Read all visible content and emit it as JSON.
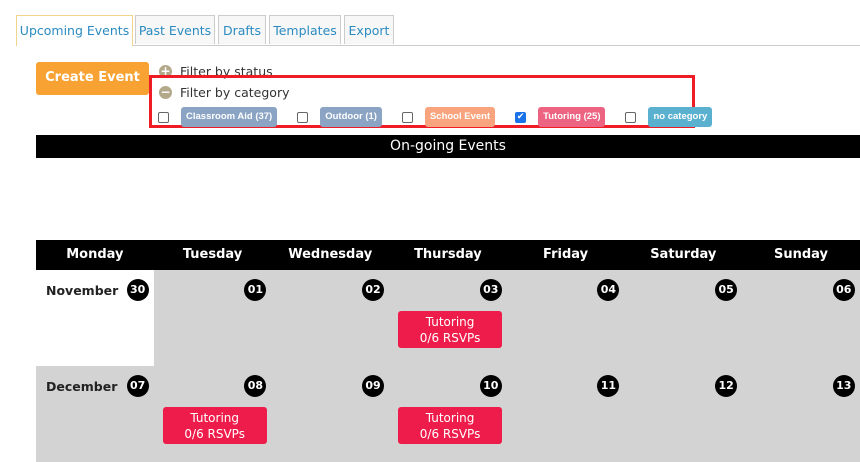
{
  "tabs": [
    {
      "label": "Upcoming Events",
      "active": true
    },
    {
      "label": "Past Events"
    },
    {
      "label": "Drafts"
    },
    {
      "label": "Templates"
    },
    {
      "label": "Export"
    }
  ],
  "create_button": "Create Event",
  "filters": {
    "status": {
      "label": "Filter by status",
      "icon": "plus-circle-icon"
    },
    "category": {
      "label": "Filter by category",
      "icon": "minus-circle-icon"
    }
  },
  "categories": [
    {
      "label": "Classroom Aid (37)",
      "checked": false,
      "color": "#8ba4c4"
    },
    {
      "label": "Outdoor (1)",
      "checked": false,
      "color": "#8ba4c4"
    },
    {
      "label": "School Event",
      "checked": false,
      "color": "#f8a57f"
    },
    {
      "label": "Tutoring (25)",
      "checked": true,
      "color": "#ec6481"
    },
    {
      "label": "no category",
      "checked": false,
      "color": "#5ab0cf"
    }
  ],
  "ongoing_title": "On-going Events",
  "weekdays": [
    "Monday",
    "Tuesday",
    "Wednesday",
    "Thursday",
    "Friday",
    "Saturday",
    "Sunday"
  ],
  "weeks": [
    {
      "month": "November",
      "days": [
        "30",
        "01",
        "02",
        "03",
        "04",
        "05",
        "06"
      ],
      "events": {
        "3": {
          "title": "Tutoring",
          "rsvp": "0/6 RSVPs"
        }
      }
    },
    {
      "month": "December",
      "days": [
        "07",
        "08",
        "09",
        "10",
        "11",
        "12",
        "13"
      ],
      "events": {
        "1": {
          "title": "Tutoring",
          "rsvp": "0/6 RSVPs"
        },
        "3": {
          "title": "Tutoring",
          "rsvp": "0/6 RSVPs"
        }
      }
    }
  ],
  "colors": {
    "event": "#ee1c4a",
    "create": "#f7a233",
    "highlight": "#ee1c24"
  }
}
